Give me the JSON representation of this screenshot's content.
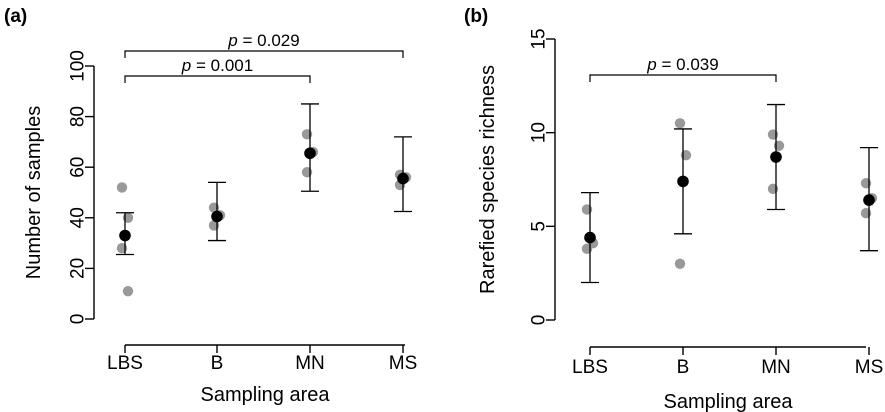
{
  "chart_data": [
    {
      "type": "scatter",
      "panel_label": "(a)",
      "xlabel": "Sampling area",
      "ylabel": "Number of samples",
      "categories": [
        "LBS",
        "B",
        "MN",
        "MS"
      ],
      "ylim": [
        0,
        100
      ],
      "yticks": [
        0,
        20,
        40,
        60,
        80,
        100
      ],
      "point_color": "#999999",
      "mean_color": "#000000",
      "points": [
        {
          "category": "LBS",
          "values": [
            52,
            40,
            28,
            11
          ]
        },
        {
          "category": "B",
          "values": [
            44,
            41,
            37
          ]
        },
        {
          "category": "MN",
          "values": [
            73,
            66,
            58
          ]
        },
        {
          "category": "MS",
          "values": [
            57,
            56,
            53
          ]
        }
      ],
      "mean": [
        33,
        40.5,
        65.5,
        55.5
      ],
      "lower": [
        25.5,
        31,
        50.5,
        42.5
      ],
      "upper": [
        42,
        54,
        85,
        72
      ],
      "comparisons": [
        {
          "from": "LBS",
          "to": "MN",
          "label": "p = 0.001",
          "p_symbol": "p",
          "p_value": "= 0.001"
        },
        {
          "from": "LBS",
          "to": "MS",
          "label": "p = 0.029",
          "p_symbol": "p",
          "p_value": "= 0.029"
        }
      ]
    },
    {
      "type": "scatter",
      "panel_label": "(b)",
      "xlabel": "Sampling area",
      "ylabel": "Rarefied species richness",
      "categories": [
        "LBS",
        "B",
        "MN",
        "MS"
      ],
      "ylim": [
        0,
        15
      ],
      "yticks": [
        0,
        5,
        10,
        15
      ],
      "point_color": "#999999",
      "mean_color": "#000000",
      "points": [
        {
          "category": "LBS",
          "values": [
            5.9,
            4.1,
            3.8
          ]
        },
        {
          "category": "B",
          "values": [
            10.5,
            8.8,
            3.0
          ]
        },
        {
          "category": "MN",
          "values": [
            9.9,
            9.3,
            7.0
          ]
        },
        {
          "category": "MS",
          "values": [
            7.3,
            6.5,
            5.7
          ]
        }
      ],
      "mean": [
        4.4,
        7.4,
        8.7,
        6.4
      ],
      "lower": [
        2.0,
        4.6,
        5.9,
        3.7
      ],
      "upper": [
        6.8,
        10.2,
        11.5,
        9.2
      ],
      "comparisons": [
        {
          "from": "LBS",
          "to": "MN",
          "label": "p = 0.039",
          "p_symbol": "p",
          "p_value": "= 0.039"
        }
      ]
    }
  ]
}
